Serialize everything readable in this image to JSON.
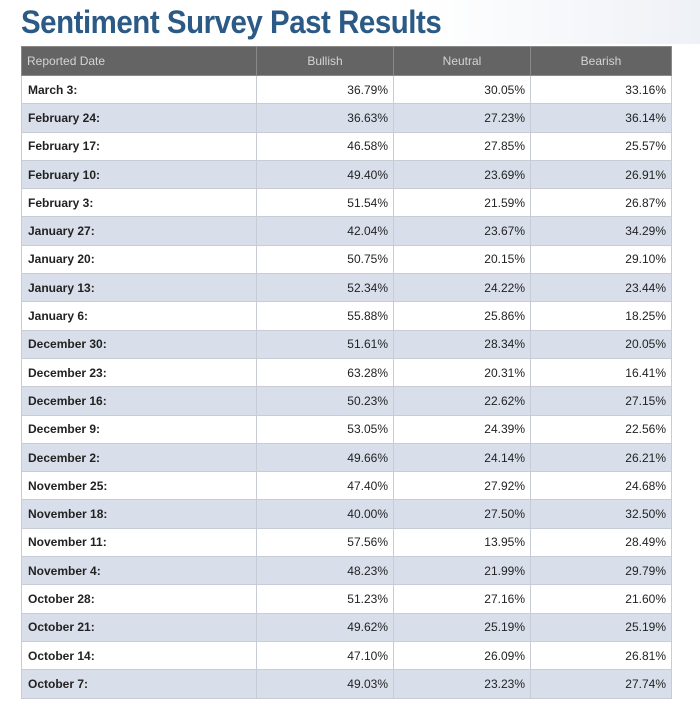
{
  "page": {
    "title": "Sentiment Survey Past Results"
  },
  "table": {
    "headers": [
      "Reported Date",
      "Bullish",
      "Neutral",
      "Bearish"
    ],
    "rows": [
      {
        "date": "March 3:",
        "bullish": "36.79%",
        "neutral": "30.05%",
        "bearish": "33.16%"
      },
      {
        "date": "February 24:",
        "bullish": "36.63%",
        "neutral": "27.23%",
        "bearish": "36.14%"
      },
      {
        "date": "February 17:",
        "bullish": "46.58%",
        "neutral": "27.85%",
        "bearish": "25.57%"
      },
      {
        "date": "February 10:",
        "bullish": "49.40%",
        "neutral": "23.69%",
        "bearish": "26.91%"
      },
      {
        "date": "February 3:",
        "bullish": "51.54%",
        "neutral": "21.59%",
        "bearish": "26.87%"
      },
      {
        "date": "January 27:",
        "bullish": "42.04%",
        "neutral": "23.67%",
        "bearish": "34.29%"
      },
      {
        "date": "January 20:",
        "bullish": "50.75%",
        "neutral": "20.15%",
        "bearish": "29.10%"
      },
      {
        "date": "January 13:",
        "bullish": "52.34%",
        "neutral": "24.22%",
        "bearish": "23.44%"
      },
      {
        "date": "January 6:",
        "bullish": "55.88%",
        "neutral": "25.86%",
        "bearish": "18.25%"
      },
      {
        "date": "December 30:",
        "bullish": "51.61%",
        "neutral": "28.34%",
        "bearish": "20.05%"
      },
      {
        "date": "December 23:",
        "bullish": "63.28%",
        "neutral": "20.31%",
        "bearish": "16.41%"
      },
      {
        "date": "December 16:",
        "bullish": "50.23%",
        "neutral": "22.62%",
        "bearish": "27.15%"
      },
      {
        "date": "December 9:",
        "bullish": "53.05%",
        "neutral": "24.39%",
        "bearish": "22.56%"
      },
      {
        "date": "December 2:",
        "bullish": "49.66%",
        "neutral": "24.14%",
        "bearish": "26.21%"
      },
      {
        "date": "November 25:",
        "bullish": "47.40%",
        "neutral": "27.92%",
        "bearish": "24.68%"
      },
      {
        "date": "November 18:",
        "bullish": "40.00%",
        "neutral": "27.50%",
        "bearish": "32.50%"
      },
      {
        "date": "November 11:",
        "bullish": "57.56%",
        "neutral": "13.95%",
        "bearish": "28.49%"
      },
      {
        "date": "November 4:",
        "bullish": "48.23%",
        "neutral": "21.99%",
        "bearish": "29.79%"
      },
      {
        "date": "October 28:",
        "bullish": "51.23%",
        "neutral": "27.16%",
        "bearish": "21.60%"
      },
      {
        "date": "October 21:",
        "bullish": "49.62%",
        "neutral": "25.19%",
        "bearish": "25.19%"
      },
      {
        "date": "October 14:",
        "bullish": "47.10%",
        "neutral": "26.09%",
        "bearish": "26.81%"
      },
      {
        "date": "October 7:",
        "bullish": "49.03%",
        "neutral": "23.23%",
        "bearish": "27.74%"
      }
    ]
  },
  "colors": {
    "title": "#2b5a86",
    "header_bg": "#646464",
    "header_text": "#d4d4d4",
    "row_alt_bg": "#d9dfea",
    "row_bg": "#ffffff"
  }
}
